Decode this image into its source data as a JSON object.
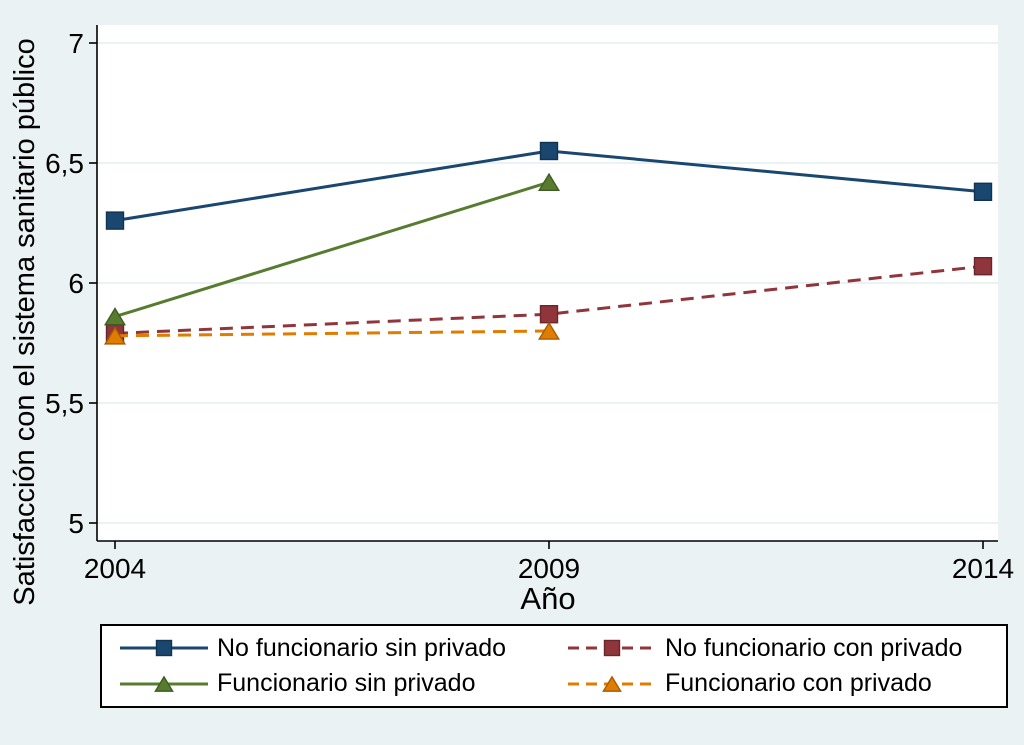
{
  "chart_data": {
    "type": "line",
    "title": "",
    "xlabel": "Año",
    "ylabel": "Satisfacción con el sistema sanitario público",
    "xlim": [
      2004,
      2014
    ],
    "ylim": [
      4.93,
      7.08
    ],
    "grid": true,
    "legend_position": "bottom",
    "decimal_separator": ",",
    "x_ticks": [
      {
        "value": 2004,
        "label": "2004"
      },
      {
        "value": 2009,
        "label": "2009"
      },
      {
        "value": 2014,
        "label": "2014"
      }
    ],
    "y_ticks": [
      {
        "value": 7,
        "label": "7"
      },
      {
        "value": 6.5,
        "label": "6,5"
      },
      {
        "value": 6,
        "label": "6"
      },
      {
        "value": 5.5,
        "label": "5,5"
      },
      {
        "value": 5,
        "label": "5"
      }
    ],
    "series": [
      {
        "name": "No funcionario sin privado",
        "slug": "no-funcionario-sin-privado",
        "color": "#1a476f",
        "edge": "#12334f",
        "dash": "solid",
        "marker": "square",
        "x": [
          2004,
          2009,
          2014
        ],
        "values": [
          6.26,
          6.55,
          6.38
        ]
      },
      {
        "name": "No funcionario con privado",
        "slug": "no-funcionario-con-privado",
        "color": "#90353b",
        "edge": "#6b262b",
        "dash": "dashed",
        "marker": "square",
        "x": [
          2004,
          2009,
          2014
        ],
        "values": [
          5.79,
          5.87,
          6.07
        ]
      },
      {
        "name": "Funcionario sin privado",
        "slug": "funcionario-sin-privado",
        "color": "#577c30",
        "edge": "#405c22",
        "dash": "solid",
        "marker": "triangle",
        "x": [
          2004,
          2009
        ],
        "values": [
          5.86,
          6.42
        ]
      },
      {
        "name": "Funcionario con privado",
        "slug": "funcionario-con-privado",
        "color": "#e07c00",
        "edge": "#a85c00",
        "dash": "dashed",
        "marker": "triangle",
        "x": [
          2004,
          2009
        ],
        "values": [
          5.78,
          5.8
        ]
      }
    ]
  },
  "colors": {
    "background": "#eaf2f3",
    "plot_background": "#ffffff",
    "gridline": "#eaf2f3",
    "axis": "#000000",
    "text": "#000000",
    "legend_background": "#ffffff",
    "legend_border": "#000000"
  }
}
